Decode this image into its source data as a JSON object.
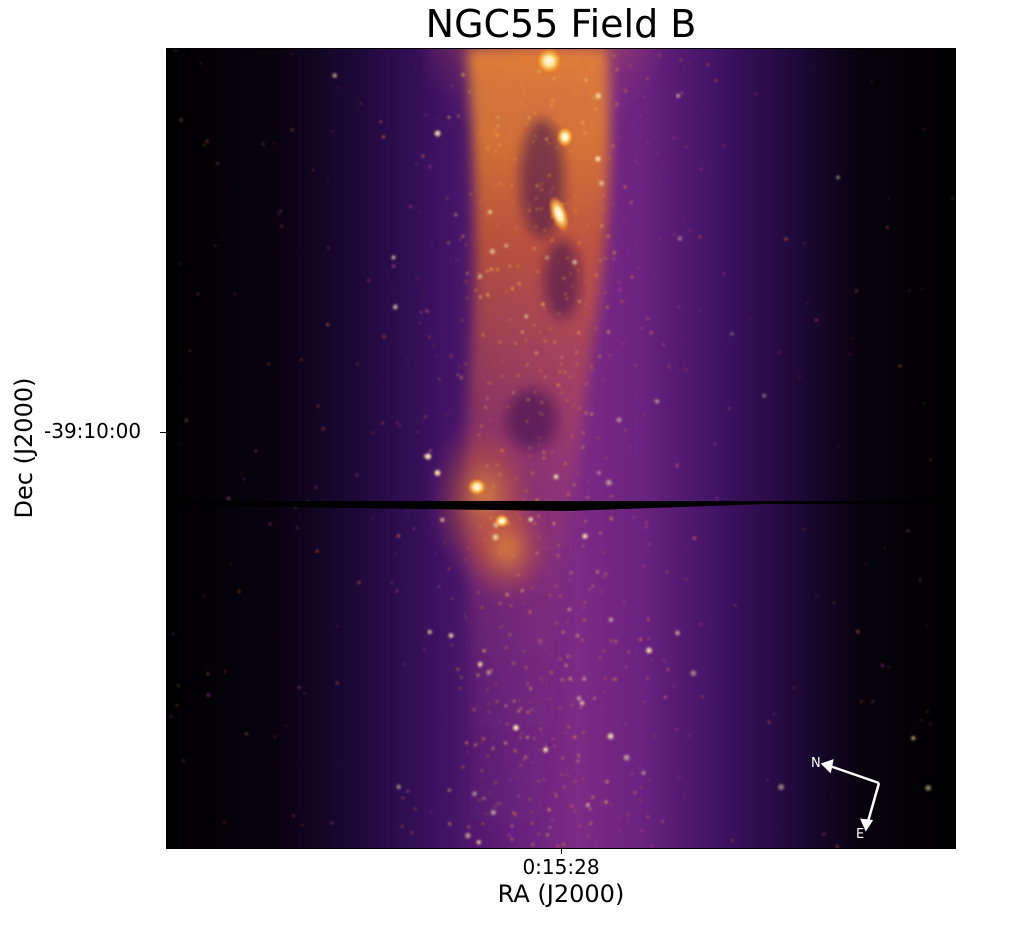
{
  "figure": {
    "title": "NGC55 Field B",
    "xlabel": "RA (J2000)",
    "ylabel": "Dec (J2000)",
    "xtick": "0:15:28",
    "ytick": "-39:10:00"
  },
  "compass": {
    "north_label": "N",
    "east_label": "E"
  },
  "colors": {
    "background": "#000000",
    "halo_outer": "#3a0d5e",
    "halo_mid": "#7b2a8a",
    "core": "#d9611f",
    "bright_core": "#fca22a",
    "knot": "#fff1b8",
    "axes": "#000000",
    "compass": "#ffffff"
  }
}
